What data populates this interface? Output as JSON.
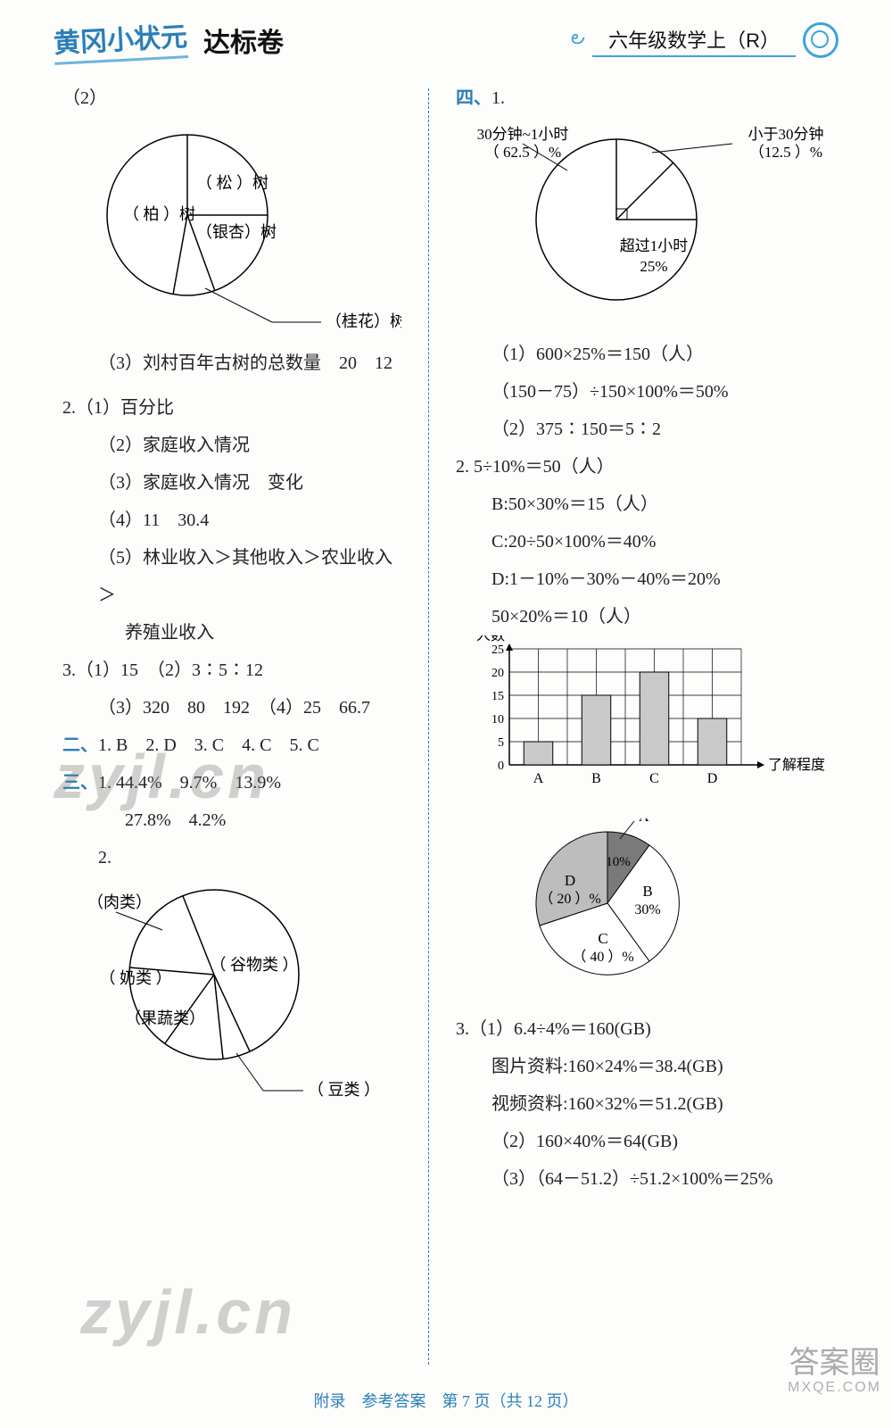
{
  "header": {
    "brand": "黄冈小状元",
    "exam": "达标卷",
    "subject": "六年级数学上（R）"
  },
  "left": {
    "q2_label": "（2）",
    "pie1": {
      "labels": {
        "bai": "（ 柏 ）树",
        "song": "（ 松 ）树",
        "yinxing": "（银杏）树",
        "guihua": "（桂花）树"
      },
      "stroke": "#000",
      "fill": "#ffffff",
      "radius": 90,
      "angles": {
        "a": -90,
        "b": 0,
        "c": 70,
        "d": 100,
        "e": 270
      }
    },
    "lines": {
      "l3": "（3）刘村百年古树的总数量　20　12",
      "q2n": "2.（1）百分比",
      "q2_2": "（2）家庭收入情况",
      "q2_3": "（3）家庭收入情况　变化",
      "q2_4": "（4）11　30.4",
      "q2_5a": "（5）林业收入＞其他收入＞农业收入＞",
      "q2_5b": "养殖业收入",
      "q3a": "3.（1）15　（2）3∶5∶12",
      "q3b": "（3）320　80　192　（4）25　66.7"
    },
    "sec2_label": "二、",
    "sec2_text": "1. B　2. D　3. C　4. C　5. C",
    "sec3_label": "三、",
    "sec3_a": "1. 44.4%　9.7%　13.9%",
    "sec3_b": "27.8%　4.2%",
    "sec3_q2": "2.",
    "pie2": {
      "labels": {
        "rou": "（肉类）",
        "nai": "（ 奶类 ）",
        "guoshu": "（果蔬类）",
        "guwu": "（ 谷物类 ）",
        "dou": "（ 豆类 ）"
      },
      "radius": 95
    }
  },
  "right": {
    "sec4_label": "四、",
    "sec4_1": "1.",
    "pie3": {
      "labels": {
        "a": "30分钟~1小时",
        "ap": "（ 62.5 ）%",
        "b": "小于30分钟",
        "bp": "（12.5 ）%",
        "c": "超过1小时",
        "cp": "25%"
      },
      "radius": 90
    },
    "eq": {
      "e1": "（1）600×25%＝150（人）",
      "e2": "（150－75）÷150×100%＝50%",
      "e3": "（2）375∶150＝5∶2",
      "q2_head": "2. 5÷10%＝50（人）",
      "q2_b": "B:50×30%＝15（人）",
      "q2_c": "C:20÷50×100%＝40%",
      "q2_d": "D:1－10%－30%－40%＝20%",
      "q2_e": "50×20%＝10（人）"
    },
    "bar": {
      "ylabel": "人数",
      "xlabel": "了解程度",
      "categories": [
        "A",
        "B",
        "C",
        "D"
      ],
      "values": [
        5,
        15,
        20,
        10
      ],
      "ymax": 25,
      "ystep": 5,
      "bar_fill": "#c9c9c9",
      "grid": "#000"
    },
    "pie4": {
      "labels": {
        "A": "A",
        "Ap": "10%",
        "B": "B",
        "Bp": "30%",
        "C": "C",
        "Cp": "（ 40 ）%",
        "D": "D",
        "Dp": "（ 20 ）%"
      },
      "fills": {
        "A": "#7a7a7a",
        "B": "#ffffff",
        "C": "#ffffff",
        "D": "#bdbdbd"
      },
      "radius": 80
    },
    "q3": {
      "a": "3.（1）6.4÷4%＝160(GB)",
      "b": "图片资料:160×24%＝38.4(GB)",
      "c": "视频资料:160×32%＝51.2(GB)",
      "d": "（2）160×40%＝64(GB)",
      "e": "（3）（64－51.2）÷51.2×100%＝25%"
    }
  },
  "footer": "附录　参考答案　第 7 页（共 12 页）",
  "watermarks": {
    "w": "zyjl.cn"
  },
  "badge": {
    "big": "答案圈",
    "small": "MXQE.COM"
  }
}
